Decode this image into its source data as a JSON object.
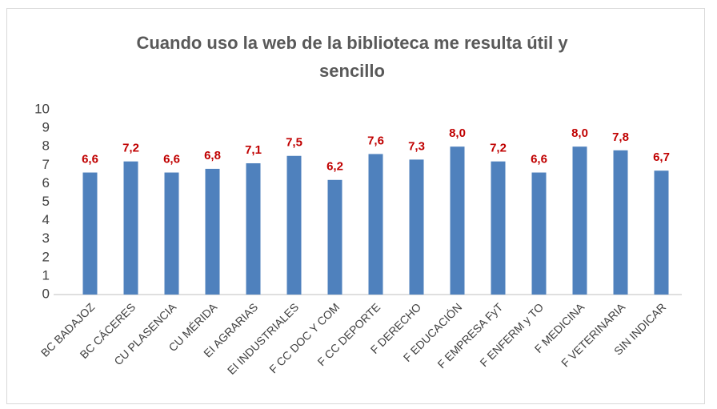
{
  "chart_data": {
    "type": "bar",
    "title": "Cuando uso la web de la biblioteca me resulta útil y sencillo",
    "categories": [
      "BC BADAJOZ",
      "BC CÁCERES",
      "CU PLASENCIA",
      "CU MÉRIDA",
      "EI AGRARIAS",
      "EI INDUSTRIALES",
      "F CC DOC Y COM",
      "F CC DEPORTE",
      "F DERECHO",
      "F EDUCACIÓN",
      "F EMPRESA FyT",
      "F ENFERM y TO",
      "F MEDICINA",
      "F VETERINARIA",
      "SIN INDICAR"
    ],
    "values": [
      6.6,
      7.2,
      6.6,
      6.8,
      7.1,
      7.5,
      6.2,
      7.6,
      7.3,
      8.0,
      7.2,
      6.6,
      8.0,
      7.8,
      6.7
    ],
    "value_labels": [
      "6,6",
      "7,2",
      "6,6",
      "6,8",
      "7,1",
      "7,5",
      "6,2",
      "7,6",
      "7,3",
      "8,0",
      "7,2",
      "6,6",
      "8,0",
      "7,8",
      "6,7"
    ],
    "color": "#4f81bd",
    "label_color": "#c00000",
    "ylim": [
      0,
      10
    ],
    "yticks": [
      0,
      1,
      2,
      3,
      4,
      5,
      6,
      7,
      8,
      9,
      10
    ],
    "grid": false
  }
}
